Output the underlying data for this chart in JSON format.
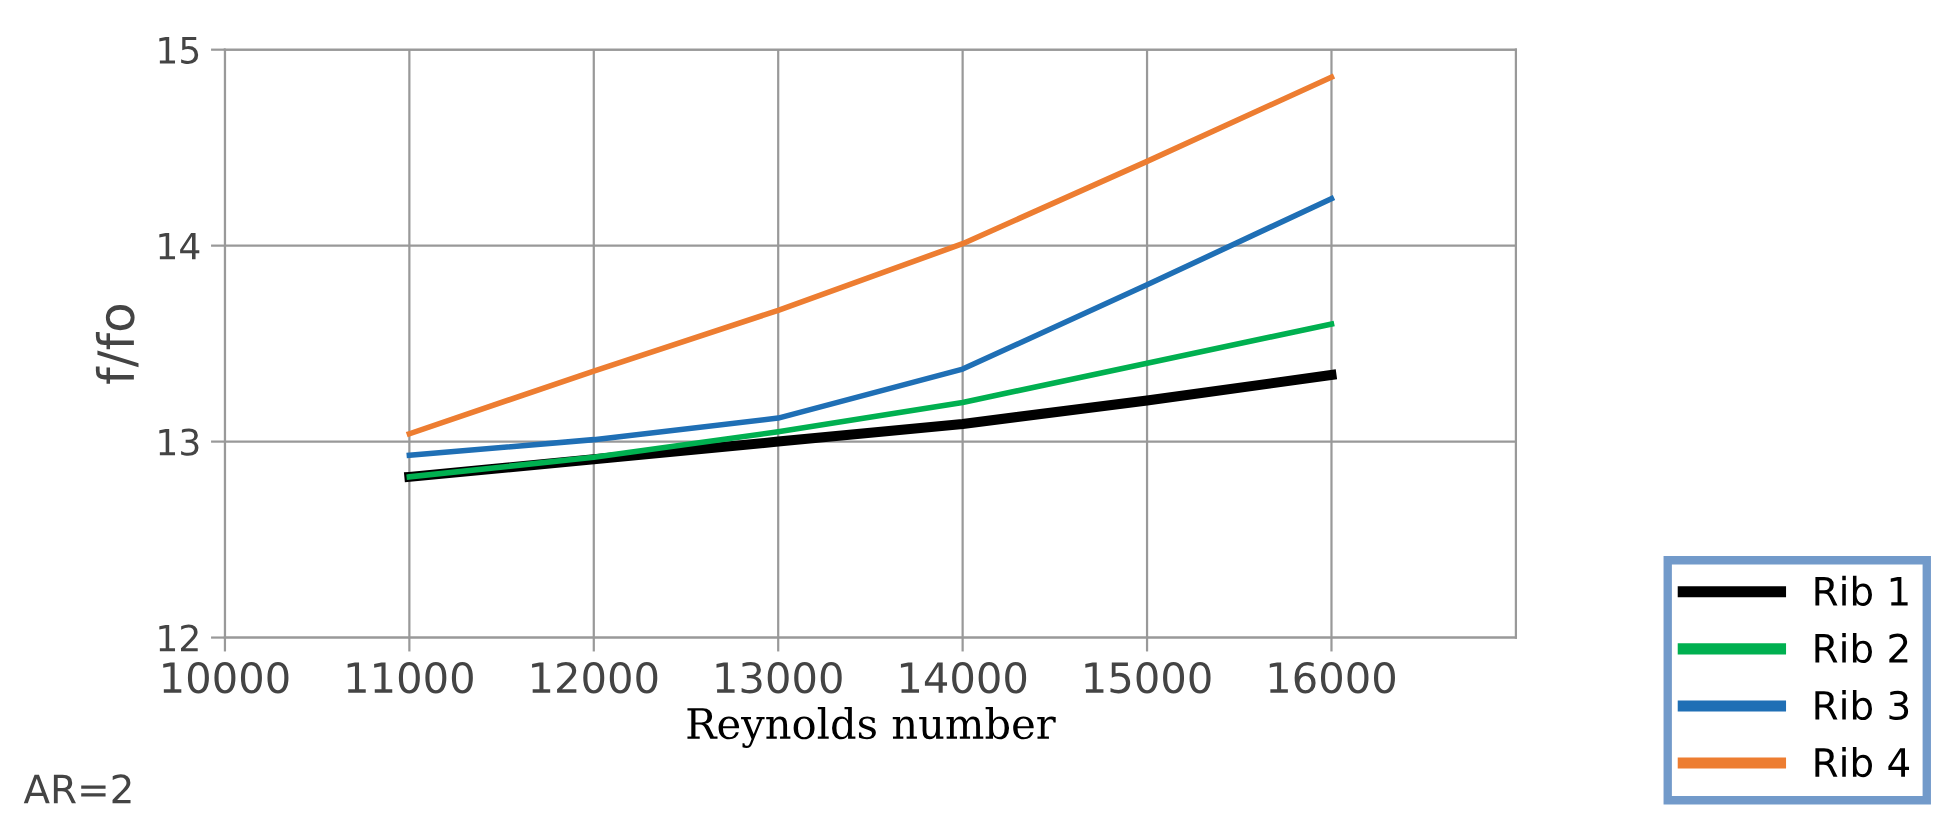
{
  "chart_data": {
    "type": "line",
    "xlabel": "Reynolds number",
    "ylabel": "f/fo",
    "annotations": [
      "AR=2"
    ],
    "x": [
      11000,
      12000,
      13000,
      14000,
      15000,
      16000
    ],
    "series": [
      {
        "name": "Rib 1",
        "color": "#000000",
        "values": [
          12.82,
          12.91,
          13.0,
          13.09,
          13.21,
          13.34
        ]
      },
      {
        "name": "Rib 2",
        "color": "#00b050",
        "values": [
          12.82,
          12.92,
          13.05,
          13.2,
          13.4,
          13.6
        ]
      },
      {
        "name": "Rib 3",
        "color": "#1f6fb5",
        "values": [
          12.93,
          13.01,
          13.12,
          13.37,
          13.8,
          14.24
        ]
      },
      {
        "name": "Rib 4",
        "color": "#ed7d31",
        "values": [
          13.04,
          13.36,
          13.67,
          14.01,
          14.43,
          14.86
        ]
      }
    ],
    "xlim": [
      10000,
      17000
    ],
    "xticks": [
      10000,
      11000,
      12000,
      13000,
      14000,
      15000,
      16000
    ],
    "ylim": [
      12,
      15
    ],
    "yticks": [
      12,
      13,
      14,
      15
    ],
    "grid": true,
    "legend": "bottom right",
    "marker": "none",
    "line_style": "solid"
  }
}
